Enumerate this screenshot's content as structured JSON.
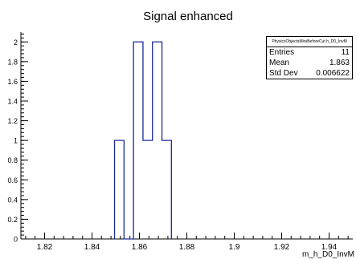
{
  "chart_data": {
    "type": "bar",
    "title": "Signal enhanced",
    "xlabel": "m_h_D0_InvM",
    "ylabel": "",
    "xlim": [
      1.81,
      1.95
    ],
    "ylim": [
      0,
      2.1
    ],
    "bin_edges": [
      1.8495,
      1.8535,
      1.8575,
      1.8615,
      1.8655,
      1.8695,
      1.8735
    ],
    "bin_values": [
      1,
      0,
      2,
      1,
      2,
      1
    ],
    "x_ticks": [
      "1.82",
      "1.84",
      "1.86",
      "1.88",
      "1.9",
      "1.92",
      "1.94"
    ],
    "y_ticks": [
      "0",
      "0.2",
      "0.4",
      "0.6",
      "0.8",
      "1",
      "1.2",
      "1.4",
      "1.6",
      "1.8",
      "2"
    ],
    "line_color": "#1a2a9a",
    "grid": false,
    "legend": "none"
  },
  "stats": {
    "name": "PhysicsObjectsMiraBeforeCut h_D0_InvM",
    "entries_label": "Entries",
    "entries": "11",
    "mean_label": "Mean",
    "mean": "1.863",
    "std_label": "Std Dev",
    "std": "0.006622"
  }
}
